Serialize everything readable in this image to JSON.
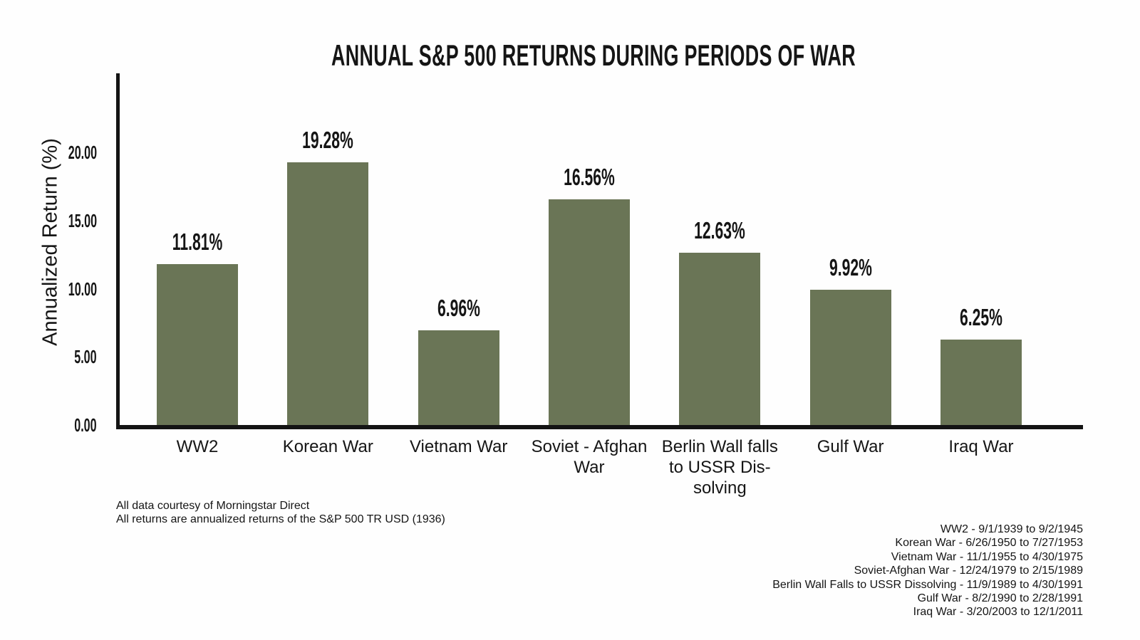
{
  "chart_data": {
    "type": "bar",
    "title": "ANNUAL S&P 500 RETURNS DURING PERIODS OF WAR",
    "xlabel": "",
    "ylabel": "Annualized Return (%)",
    "categories": [
      "WW2",
      "Korean War",
      "Vietnam War",
      "Soviet - Afghan\nWar",
      "Berlin Wall falls\nto USSR Dis-\nsolving",
      "Gulf War",
      "Iraq War"
    ],
    "values": [
      11.81,
      19.28,
      6.96,
      16.56,
      12.63,
      9.92,
      6.25
    ],
    "value_labels": [
      "11.81%",
      "19.28%",
      "6.96%",
      "16.56%",
      "12.63%",
      "9.92%",
      "6.25%"
    ],
    "y_ticks": [
      {
        "value": 0,
        "label": "0.00"
      },
      {
        "value": 5,
        "label": "5.00"
      },
      {
        "value": 10,
        "label": "10.00"
      },
      {
        "value": 15,
        "label": "15.00"
      },
      {
        "value": 20,
        "label": "20.00"
      }
    ],
    "ylim": [
      0,
      25.8
    ],
    "grid": false,
    "legend": false,
    "bar_color": "#6a7556",
    "axis_color": "#141414"
  },
  "footnotes": {
    "left": [
      "All data courtesy of Morningstar Direct",
      "All returns are annualized returns of the S&P 500 TR USD (1936)"
    ],
    "right": [
      "WW2 - 9/1/1939 to 9/2/1945",
      "Korean War - 6/26/1950 to 7/27/1953",
      "Vietnam War - 11/1/1955 to 4/30/1975",
      "Soviet-Afghan War - 12/24/1979 to 2/15/1989",
      "Berlin Wall Falls to USSR Dissolving - 11/9/1989 to 4/30/1991",
      "Gulf War - 8/2/1990 to 2/28/1991",
      "Iraq War - 3/20/2003 to 12/1/2011"
    ]
  }
}
